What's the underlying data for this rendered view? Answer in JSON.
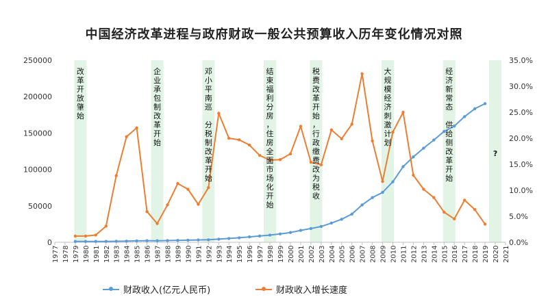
{
  "chart_data": {
    "type": "line",
    "title": "中国经济改革进程与政府财政一般公共预算收入历年变化情况对照",
    "x_categories": [
      "1977",
      "1978",
      "1979",
      "1980",
      "1981",
      "1982",
      "1983",
      "1984",
      "1985",
      "1986",
      "1987",
      "1988",
      "1989",
      "1990",
      "1991",
      "1992",
      "1993",
      "1994",
      "1995",
      "1996",
      "1997",
      "1998",
      "1999",
      "2000",
      "2001",
      "2002",
      "2003",
      "2004",
      "2005",
      "2006",
      "2007",
      "2008",
      "2009",
      "2010",
      "2011",
      "2012",
      "2013",
      "2014",
      "2015",
      "2016",
      "2017",
      "2018",
      "2019",
      "2020",
      "2021"
    ],
    "y_left": {
      "ticks": [
        "0",
        "50000",
        "100000",
        "150000",
        "200000",
        "250000"
      ],
      "min": 0,
      "max": 250000
    },
    "y_right": {
      "ticks": [
        "0.0%",
        "5.0%",
        "10.0%",
        "15.0%",
        "20.0%",
        "25.0%",
        "30.0%",
        "35.0%"
      ],
      "min": 0,
      "max": 0.35
    },
    "series": [
      {
        "name": "财政收入(亿元人民币)",
        "axis": "left",
        "color": "#5B9BD5",
        "x": [
          1979,
          1980,
          1981,
          1982,
          1983,
          1984,
          1985,
          1986,
          1987,
          1988,
          1989,
          1990,
          1991,
          1992,
          1993,
          1994,
          1995,
          1996,
          1997,
          1998,
          1999,
          2000,
          2001,
          2002,
          2003,
          2004,
          2005,
          2006,
          2007,
          2008,
          2009,
          2010,
          2011,
          2012,
          2013,
          2014,
          2015,
          2016,
          2017,
          2018,
          2019
        ],
        "values": [
          1146,
          1160,
          1176,
          1212,
          1367,
          1643,
          2005,
          2122,
          2199,
          2357,
          2665,
          2937,
          3149,
          3483,
          4349,
          5218,
          6242,
          7408,
          8651,
          9876,
          11444,
          13395,
          16386,
          18904,
          21715,
          26396,
          31649,
          38760,
          51322,
          61330,
          68518,
          83102,
          103874,
          117254,
          129210,
          140370,
          152269,
          159605,
          172593,
          183360,
          190382
        ]
      },
      {
        "name": "财政收入增长速度",
        "axis": "right",
        "color": "#ED7D31",
        "x": [
          1979,
          1980,
          1981,
          1982,
          1983,
          1984,
          1985,
          1986,
          1987,
          1988,
          1989,
          1990,
          1991,
          1992,
          1993,
          1994,
          1995,
          1996,
          1997,
          1998,
          1999,
          2000,
          2001,
          2002,
          2003,
          2004,
          2005,
          2006,
          2007,
          2008,
          2009,
          2010,
          2011,
          2012,
          2013,
          2014,
          2015,
          2016,
          2017,
          2018,
          2019
        ],
        "values": [
          0.012,
          0.012,
          0.014,
          0.031,
          0.128,
          0.203,
          0.22,
          0.059,
          0.036,
          0.072,
          0.113,
          0.102,
          0.073,
          0.105,
          0.248,
          0.2,
          0.197,
          0.187,
          0.167,
          0.158,
          0.159,
          0.17,
          0.223,
          0.154,
          0.149,
          0.216,
          0.199,
          0.227,
          0.324,
          0.195,
          0.117,
          0.212,
          0.25,
          0.129,
          0.102,
          0.086,
          0.058,
          0.045,
          0.081,
          0.063,
          0.035
        ]
      }
    ],
    "events": [
      {
        "year": 1979.5,
        "text": "改革开放肇始"
      },
      {
        "year": 1987,
        "text": "企业承包制改革开始"
      },
      {
        "year": 1992,
        "text": "邓小平南巡 分税制改革开始"
      },
      {
        "year": 1998,
        "text": "结束福利分房，住房全面市场化开始"
      },
      {
        "year": 2002.5,
        "text": "税费改革开始，行政缴费改为税收"
      },
      {
        "year": 2009.5,
        "text": "大规模经济刺激计划"
      },
      {
        "year": 2015.5,
        "text": "经济新常态 供给侧改革开始"
      },
      {
        "year": 2020,
        "text": "?"
      }
    ],
    "band_color": "#E2F4E6",
    "legend": {
      "placement": "bottom"
    }
  }
}
